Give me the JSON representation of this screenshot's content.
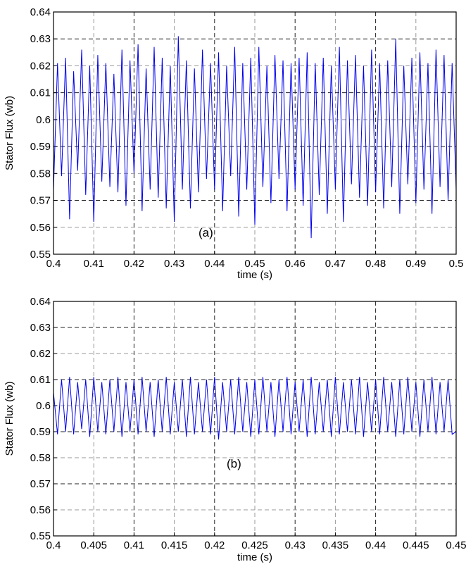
{
  "chart_data": [
    {
      "type": "line",
      "panel_label": "(a)",
      "xlabel": "time (s)",
      "ylabel": "Stator Flux (wb)",
      "xlim": [
        0.4,
        0.5
      ],
      "ylim": [
        0.55,
        0.64
      ],
      "x_ticks": [
        "0.4",
        "0.41",
        "0.42",
        "0.43",
        "0.44",
        "0.45",
        "0.46",
        "0.47",
        "0.48",
        "0.49",
        "0.5"
      ],
      "y_ticks": [
        "0.55",
        "0.56",
        "0.57",
        "0.58",
        "0.59",
        "0.6",
        "0.61",
        "0.62",
        "0.63",
        "0.64"
      ],
      "grid": true,
      "series": [
        {
          "color": "#0000ee",
          "x": [
            0.4,
            0.401,
            0.402,
            0.403,
            0.404,
            0.405,
            0.406,
            0.407,
            0.408,
            0.409,
            0.41,
            0.411,
            0.412,
            0.413,
            0.414,
            0.415,
            0.416,
            0.417,
            0.418,
            0.419,
            0.42,
            0.421,
            0.422,
            0.423,
            0.424,
            0.425,
            0.426,
            0.427,
            0.428,
            0.429,
            0.43,
            0.431,
            0.432,
            0.433,
            0.434,
            0.435,
            0.436,
            0.437,
            0.438,
            0.439,
            0.44,
            0.441,
            0.442,
            0.443,
            0.444,
            0.445,
            0.446,
            0.447,
            0.448,
            0.449,
            0.45,
            0.451,
            0.452,
            0.453,
            0.454,
            0.455,
            0.456,
            0.457,
            0.458,
            0.459,
            0.46,
            0.461,
            0.462,
            0.463,
            0.464,
            0.465,
            0.466,
            0.467,
            0.468,
            0.469,
            0.47,
            0.471,
            0.472,
            0.473,
            0.474,
            0.475,
            0.476,
            0.477,
            0.478,
            0.479,
            0.48,
            0.481,
            0.482,
            0.483,
            0.484,
            0.485,
            0.486,
            0.487,
            0.488,
            0.489,
            0.49,
            0.491,
            0.492,
            0.493,
            0.494,
            0.495,
            0.496,
            0.497,
            0.498,
            0.499,
            0.5
          ],
          "values": [
            0.574,
            0.621,
            0.579,
            0.623,
            0.563,
            0.618,
            0.581,
            0.626,
            0.572,
            0.62,
            0.562,
            0.624,
            0.577,
            0.621,
            0.575,
            0.617,
            0.573,
            0.626,
            0.568,
            0.622,
            0.58,
            0.628,
            0.566,
            0.619,
            0.574,
            0.627,
            0.571,
            0.623,
            0.567,
            0.62,
            0.562,
            0.631,
            0.574,
            0.622,
            0.567,
            0.619,
            0.573,
            0.626,
            0.578,
            0.621,
            0.574,
            0.625,
            0.566,
            0.62,
            0.579,
            0.627,
            0.564,
            0.621,
            0.574,
            0.623,
            0.561,
            0.627,
            0.575,
            0.62,
            0.569,
            0.624,
            0.578,
            0.622,
            0.566,
            0.621,
            0.574,
            0.623,
            0.568,
            0.625,
            0.556,
            0.621,
            0.572,
            0.623,
            0.565,
            0.62,
            0.574,
            0.627,
            0.562,
            0.622,
            0.576,
            0.624,
            0.571,
            0.62,
            0.568,
            0.626,
            0.573,
            0.621,
            0.567,
            0.622,
            0.575,
            0.63,
            0.565,
            0.62,
            0.576,
            0.623,
            0.569,
            0.625,
            0.574,
            0.621,
            0.565,
            0.626,
            0.575,
            0.624,
            0.57,
            0.621,
            0.574
          ]
        }
      ]
    },
    {
      "type": "line",
      "panel_label": "(b)",
      "xlabel": "time (s)",
      "ylabel": "Stator Flux (wb)",
      "xlim": [
        0.4,
        0.45
      ],
      "ylim": [
        0.55,
        0.64
      ],
      "x_ticks": [
        "0.4",
        "0.405",
        "0.41",
        "0.415",
        "0.42",
        "0.425",
        "0.43",
        "0.435",
        "0.44",
        "0.445",
        "0.45"
      ],
      "y_ticks": [
        "0.55",
        "0.56",
        "0.57",
        "0.58",
        "0.59",
        "0.6",
        "0.61",
        "0.62",
        "0.63",
        "0.64"
      ],
      "grid": true,
      "series": [
        {
          "color": "#0000ee",
          "x": [
            0.4,
            0.4005,
            0.401,
            0.4015,
            0.402,
            0.4025,
            0.403,
            0.4035,
            0.404,
            0.4045,
            0.405,
            0.4055,
            0.406,
            0.4065,
            0.407,
            0.4075,
            0.408,
            0.4085,
            0.409,
            0.4095,
            0.41,
            0.4105,
            0.411,
            0.4115,
            0.412,
            0.4125,
            0.413,
            0.4135,
            0.414,
            0.4145,
            0.415,
            0.4155,
            0.416,
            0.4165,
            0.417,
            0.4175,
            0.418,
            0.4185,
            0.419,
            0.4195,
            0.42,
            0.4205,
            0.421,
            0.4215,
            0.422,
            0.4225,
            0.423,
            0.4235,
            0.424,
            0.4245,
            0.425,
            0.4255,
            0.426,
            0.4265,
            0.427,
            0.4275,
            0.428,
            0.4285,
            0.429,
            0.4295,
            0.43,
            0.4305,
            0.431,
            0.4315,
            0.432,
            0.4325,
            0.433,
            0.4335,
            0.434,
            0.4345,
            0.435,
            0.4355,
            0.436,
            0.4365,
            0.437,
            0.4375,
            0.438,
            0.4385,
            0.439,
            0.4395,
            0.44,
            0.4405,
            0.441,
            0.4415,
            0.442,
            0.4425,
            0.443,
            0.4435,
            0.444,
            0.4445,
            0.445,
            0.4455,
            0.446,
            0.4465,
            0.447,
            0.4475,
            0.448,
            0.4485,
            0.449,
            0.4495,
            0.45
          ],
          "values": [
            0.605,
            0.589,
            0.61,
            0.59,
            0.611,
            0.589,
            0.609,
            0.591,
            0.61,
            0.588,
            0.611,
            0.59,
            0.609,
            0.589,
            0.61,
            0.59,
            0.611,
            0.588,
            0.609,
            0.59,
            0.61,
            0.589,
            0.611,
            0.59,
            0.609,
            0.588,
            0.61,
            0.59,
            0.611,
            0.589,
            0.609,
            0.59,
            0.61,
            0.588,
            0.611,
            0.589,
            0.609,
            0.59,
            0.61,
            0.589,
            0.611,
            0.587,
            0.609,
            0.59,
            0.61,
            0.589,
            0.611,
            0.59,
            0.609,
            0.588,
            0.61,
            0.589,
            0.611,
            0.59,
            0.609,
            0.588,
            0.61,
            0.59,
            0.611,
            0.589,
            0.609,
            0.59,
            0.61,
            0.588,
            0.611,
            0.589,
            0.609,
            0.59,
            0.61,
            0.588,
            0.611,
            0.589,
            0.609,
            0.59,
            0.61,
            0.589,
            0.611,
            0.588,
            0.609,
            0.59,
            0.61,
            0.589,
            0.611,
            0.59,
            0.609,
            0.588,
            0.61,
            0.589,
            0.611,
            0.59,
            0.609,
            0.588,
            0.61,
            0.59,
            0.611,
            0.589,
            0.609,
            0.59,
            0.61,
            0.589,
            0.59
          ]
        }
      ]
    }
  ]
}
